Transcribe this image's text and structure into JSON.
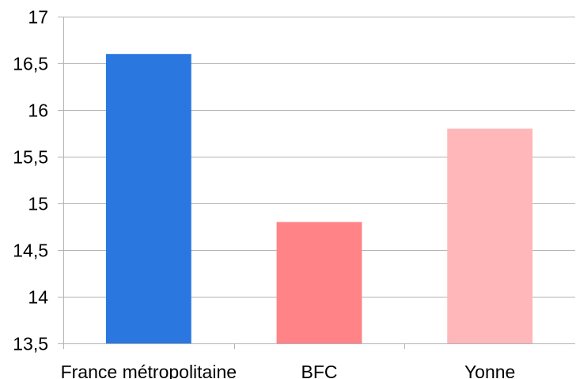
{
  "chart_data": {
    "type": "bar",
    "categories": [
      "France métropolitaine",
      "BFC",
      "Yonne"
    ],
    "values": [
      16.6,
      14.8,
      15.8
    ],
    "colors": [
      "#2a77e0",
      "#ff8387",
      "#ffb7ba"
    ],
    "yticks": [
      "13,5",
      "14",
      "14,5",
      "15",
      "15,5",
      "16",
      "16,5",
      "17"
    ],
    "ylim": [
      13.5,
      17
    ],
    "grid": true,
    "legend": "none"
  }
}
